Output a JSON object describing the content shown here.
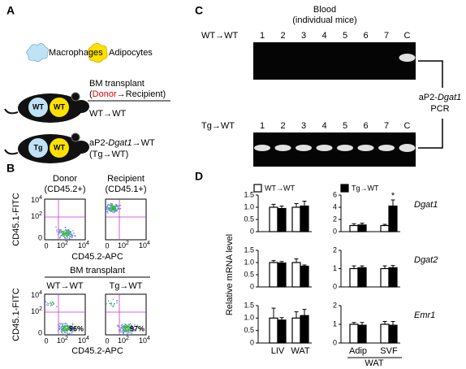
{
  "panel_a": {
    "letter": "A",
    "macrophages": "Macrophages",
    "adipocytes": "Adipocytes",
    "bm_transplant": "BM transplant",
    "donor_recipient": [
      "(",
      "Donor",
      "→Recipient)"
    ],
    "mouse_wt_labels": [
      "WT",
      "WT"
    ],
    "mouse_tg_labels": [
      "Tg",
      "WT"
    ],
    "wt_wt": "WT→WT",
    "tg_label": [
      "aP2-",
      "Dgat1",
      "→WT"
    ],
    "tg_short": "(Tg→WT)"
  },
  "panel_b": {
    "letter": "B",
    "donor": [
      "Donor",
      "(CD45.2+)"
    ],
    "recipient": [
      "Recipient",
      "(CD45.1+)"
    ],
    "y_label": "CD45.1-FITC",
    "x_label": "CD45.2-APC",
    "tick_zero": "0",
    "tick_base": "10",
    "tick_exps": [
      "2",
      "4"
    ],
    "bm_transplant": "BM transplant",
    "groups": [
      "WT→WT",
      "Tg→WT"
    ],
    "percentages": [
      "96%",
      "97%"
    ]
  },
  "panel_c": {
    "letter": "C",
    "title": [
      "Blood",
      "(individual mice)"
    ],
    "rows": [
      {
        "label": "WT→WT",
        "lanes": [
          "1",
          "2",
          "3",
          "4",
          "5",
          "6",
          "7",
          "C"
        ]
      },
      {
        "label": "Tg→WT",
        "lanes": [
          "1",
          "2",
          "3",
          "4",
          "5",
          "6",
          "7",
          "C"
        ]
      }
    ],
    "pcr": [
      "aP2-",
      "Dgat1"
    ],
    "pcr2": "PCR"
  },
  "panel_d": {
    "letter": "D",
    "legend": [
      {
        "name": "WT→WT",
        "color": "#ffffff"
      },
      {
        "name": "Tg→WT",
        "color": "#000000"
      }
    ],
    "y_label": "Relative mRNA level",
    "left_categories": [
      "LIV",
      "WAT"
    ],
    "right_categories": [
      "Adip",
      "SVF"
    ],
    "right_group": "WAT",
    "rows": [
      {
        "gene": "Dgat1",
        "left": {
          "type": "bar",
          "ylim": [
            0,
            1.5
          ],
          "yticks": [
            0,
            0.5,
            {
              "value": 1,
              "label": "1.0"
            },
            1.5
          ],
          "wt": [
            1.0,
            1.0
          ],
          "wt_err": [
            0.12,
            0.15
          ],
          "tg": [
            0.95,
            1.05
          ],
          "tg_err": [
            0.1,
            0.2
          ]
        },
        "right": {
          "type": "bar",
          "ylim": [
            0,
            6
          ],
          "yticks": [
            0,
            2,
            4,
            6
          ],
          "wt": [
            1.0,
            1.0
          ],
          "wt_err": [
            0.3,
            0.2
          ],
          "tg": [
            1.1,
            4.2
          ],
          "tg_err": [
            0.3,
            1.0
          ],
          "annotation": "*"
        }
      },
      {
        "gene": "Dgat2",
        "left": {
          "type": "bar",
          "ylim": [
            0,
            1.5
          ],
          "yticks": [
            0,
            0.5,
            {
              "value": 1,
              "label": "1.0"
            },
            1.5
          ],
          "wt": [
            1.0,
            1.0
          ],
          "wt_err": [
            0.08,
            0.15
          ],
          "tg": [
            0.98,
            0.85
          ],
          "tg_err": [
            0.06,
            0.05
          ]
        },
        "right": {
          "type": "bar",
          "ylim": [
            0,
            2
          ],
          "yticks": [
            0,
            1,
            2
          ],
          "wt": [
            1.0,
            1.0
          ],
          "wt_err": [
            0.15,
            0.15
          ],
          "tg": [
            1.05,
            1.05
          ],
          "tg_err": [
            0.1,
            0.12
          ]
        }
      },
      {
        "gene": "Emr1",
        "left": {
          "type": "bar",
          "ylim": [
            0,
            1.5
          ],
          "yticks": [
            0,
            0.5,
            {
              "value": 1,
              "label": "1.0"
            },
            1.5
          ],
          "wt": [
            1.0,
            1.0
          ],
          "wt_err": [
            0.4,
            0.25
          ],
          "tg": [
            0.92,
            1.1
          ],
          "tg_err": [
            0.1,
            0.25
          ]
        },
        "right": {
          "type": "bar",
          "ylim": [
            0,
            2
          ],
          "yticks": [
            0,
            1,
            2
          ],
          "wt": [
            1.0,
            1.0
          ],
          "wt_err": [
            0.1,
            0.15
          ],
          "tg": [
            0.95,
            0.95
          ],
          "tg_err": [
            0.15,
            0.2
          ]
        }
      }
    ]
  }
}
